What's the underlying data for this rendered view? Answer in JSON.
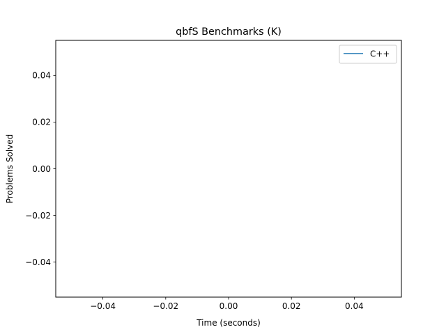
{
  "chart_data": {
    "type": "line",
    "title": "qbfS Benchmarks (K)",
    "xlabel": "Time (seconds)",
    "ylabel": "Problems Solved",
    "xlim": [
      -0.055,
      0.055
    ],
    "ylim": [
      -0.055,
      0.055
    ],
    "x_ticks": [
      -0.04,
      -0.02,
      0.0,
      0.02,
      0.04
    ],
    "x_tick_labels": [
      "−0.04",
      "−0.02",
      "0.00",
      "0.02",
      "0.04"
    ],
    "y_ticks": [
      -0.04,
      -0.02,
      0.0,
      0.02,
      0.04
    ],
    "y_tick_labels": [
      "−0.04",
      "−0.02",
      "0.00",
      "0.02",
      "0.04"
    ],
    "grid": false,
    "legend_position": "top-right",
    "series": [
      {
        "name": "C++",
        "color": "#1f77b4",
        "x": [],
        "y": []
      }
    ]
  }
}
